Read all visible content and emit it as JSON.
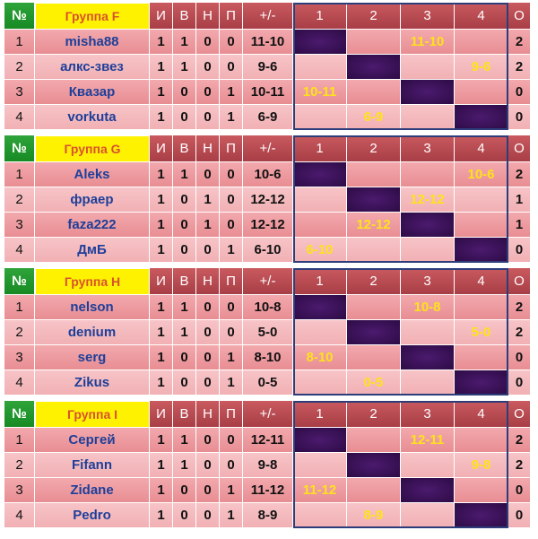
{
  "header_labels": {
    "num": "№",
    "i": "И",
    "v": "В",
    "n": "Н",
    "p": "П",
    "diff": "+/-",
    "m1": "1",
    "m2": "2",
    "m3": "3",
    "m4": "4",
    "pts": "О"
  },
  "groups": [
    {
      "title": "Группа F",
      "rows": [
        {
          "n": "1",
          "name": "misha88",
          "i": "1",
          "v": "1",
          "d": "0",
          "l": "0",
          "diff": "11-10",
          "m": [
            "",
            "",
            "11-10",
            ""
          ],
          "pts": "2"
        },
        {
          "n": "2",
          "name": "алкс-звез",
          "i": "1",
          "v": "1",
          "d": "0",
          "l": "0",
          "diff": "9-6",
          "m": [
            "",
            "",
            "",
            "9-6"
          ],
          "pts": "2"
        },
        {
          "n": "3",
          "name": "Квазар",
          "i": "1",
          "v": "0",
          "d": "0",
          "l": "1",
          "diff": "10-11",
          "m": [
            "10-11",
            "",
            "",
            ""
          ],
          "pts": "0"
        },
        {
          "n": "4",
          "name": "vorkuta",
          "i": "1",
          "v": "0",
          "d": "0",
          "l": "1",
          "diff": "6-9",
          "m": [
            "",
            "6-9",
            "",
            ""
          ],
          "pts": "0"
        }
      ]
    },
    {
      "title": "Группа G",
      "rows": [
        {
          "n": "1",
          "name": "Aleks",
          "i": "1",
          "v": "1",
          "d": "0",
          "l": "0",
          "diff": "10-6",
          "m": [
            "",
            "",
            "",
            "10-6"
          ],
          "pts": "2"
        },
        {
          "n": "2",
          "name": "фраер",
          "i": "1",
          "v": "0",
          "d": "1",
          "l": "0",
          "diff": "12-12",
          "m": [
            "",
            "",
            "12-12",
            ""
          ],
          "pts": "1"
        },
        {
          "n": "3",
          "name": "faza222",
          "i": "1",
          "v": "0",
          "d": "1",
          "l": "0",
          "diff": "12-12",
          "m": [
            "",
            "12-12",
            "",
            ""
          ],
          "pts": "1"
        },
        {
          "n": "4",
          "name": "ДмБ",
          "i": "1",
          "v": "0",
          "d": "0",
          "l": "1",
          "diff": "6-10",
          "m": [
            "6-10",
            "",
            "",
            ""
          ],
          "pts": "0"
        }
      ]
    },
    {
      "title": "Группа H",
      "rows": [
        {
          "n": "1",
          "name": "nelson",
          "i": "1",
          "v": "1",
          "d": "0",
          "l": "0",
          "diff": "10-8",
          "m": [
            "",
            "",
            "10-8",
            ""
          ],
          "pts": "2"
        },
        {
          "n": "2",
          "name": "denium",
          "i": "1",
          "v": "1",
          "d": "0",
          "l": "0",
          "diff": "5-0",
          "m": [
            "",
            "",
            "",
            "5-0"
          ],
          "pts": "2"
        },
        {
          "n": "3",
          "name": "serg",
          "i": "1",
          "v": "0",
          "d": "0",
          "l": "1",
          "diff": "8-10",
          "m": [
            "8-10",
            "",
            "",
            ""
          ],
          "pts": "0"
        },
        {
          "n": "4",
          "name": "Zikus",
          "i": "1",
          "v": "0",
          "d": "0",
          "l": "1",
          "diff": "0-5",
          "m": [
            "",
            "0-5",
            "",
            ""
          ],
          "pts": "0"
        }
      ]
    },
    {
      "title": "Группа I",
      "rows": [
        {
          "n": "1",
          "name": "Сергей",
          "i": "1",
          "v": "1",
          "d": "0",
          "l": "0",
          "diff": "12-11",
          "m": [
            "",
            "",
            "12-11",
            ""
          ],
          "pts": "2"
        },
        {
          "n": "2",
          "name": "Fifann",
          "i": "1",
          "v": "1",
          "d": "0",
          "l": "0",
          "diff": "9-8",
          "m": [
            "",
            "",
            "",
            "9-8"
          ],
          "pts": "2"
        },
        {
          "n": "3",
          "name": "Zidane",
          "i": "1",
          "v": "0",
          "d": "0",
          "l": "1",
          "diff": "11-12",
          "m": [
            "11-12",
            "",
            "",
            ""
          ],
          "pts": "0"
        },
        {
          "n": "4",
          "name": "Pedro",
          "i": "1",
          "v": "0",
          "d": "0",
          "l": "1",
          "diff": "8-9",
          "m": [
            "",
            "8-9",
            "",
            ""
          ],
          "pts": "0"
        }
      ]
    }
  ]
}
